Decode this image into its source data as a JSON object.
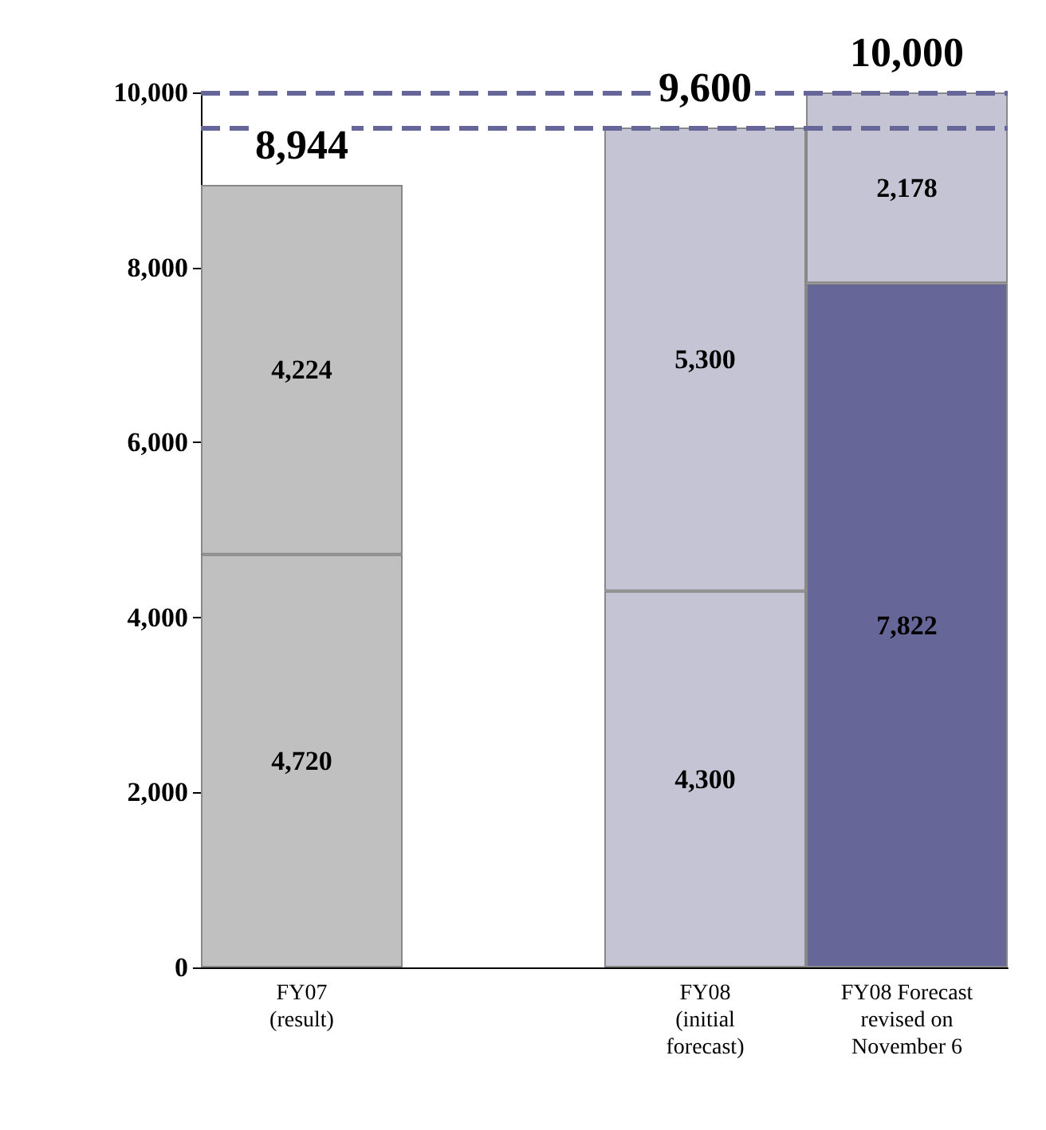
{
  "chart_data": {
    "type": "bar",
    "stacked": true,
    "categories": [
      "FY07\n(result)",
      null,
      "FY08\n(initial\nforecast)",
      "FY08 Forecast\nrevised on\nNovember 6"
    ],
    "series": [
      {
        "colors": [
          "#c0c0c0",
          null,
          "#c4c4d4",
          "#666699"
        ],
        "values": [
          4720,
          null,
          4300,
          7822
        ],
        "value_labels": [
          "4,720",
          null,
          "4,300",
          "7,822"
        ]
      },
      {
        "colors": [
          "#c0c0c0",
          null,
          "#c4c4d4",
          "#c4c4d4"
        ],
        "values": [
          4224,
          null,
          5300,
          2178
        ],
        "value_labels": [
          "4,224",
          null,
          "5,300",
          "2,178"
        ]
      }
    ],
    "totals": [
      "8,944",
      null,
      "9,600",
      "10,000"
    ],
    "ylim": [
      0,
      10000
    ],
    "yticks": [
      {
        "value": 0,
        "label": "0"
      },
      {
        "value": 2000,
        "label": "2,000"
      },
      {
        "value": 4000,
        "label": "4,000"
      },
      {
        "value": 6000,
        "label": "6,000"
      },
      {
        "value": 8000,
        "label": "8,000"
      },
      {
        "value": 10000,
        "label": "10,000"
      }
    ],
    "ref_lines": [
      {
        "axis": "y",
        "value": 9600,
        "color": "#666699",
        "line_style": "dashed"
      },
      {
        "axis": "y",
        "value": 10000,
        "color": "#666699",
        "line_style": "dashed"
      }
    ],
    "grid": false
  }
}
